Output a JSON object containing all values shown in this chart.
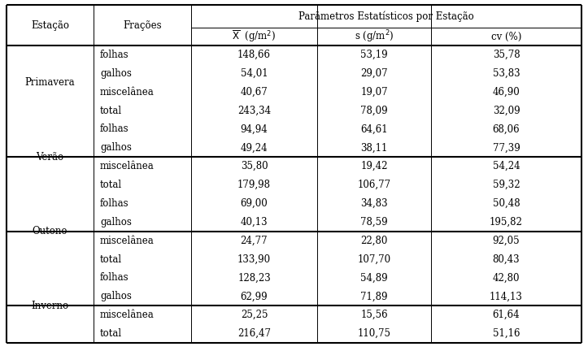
{
  "title": "Parâmetros Estatísticos por Estação",
  "seasons": [
    "Primavera",
    "Verão",
    "Outono",
    "Inverno"
  ],
  "fractions": [
    "folhas",
    "galhos",
    "miscelânea",
    "total"
  ],
  "data": {
    "Primavera": {
      "folhas": [
        "148,66",
        "53,19",
        "35,78"
      ],
      "galhos": [
        "54,01",
        "29,07",
        "53,83"
      ],
      "miscelânea": [
        "40,67",
        "19,07",
        "46,90"
      ],
      "total": [
        "243,34",
        "78,09",
        "32,09"
      ]
    },
    "Verão": {
      "folhas": [
        "94,94",
        "64,61",
        "68,06"
      ],
      "galhos": [
        "49,24",
        "38,11",
        "77,39"
      ],
      "miscelânea": [
        "35,80",
        "19,42",
        "54,24"
      ],
      "total": [
        "179,98",
        "106,77",
        "59,32"
      ]
    },
    "Outono": {
      "folhas": [
        "69,00",
        "34,83",
        "50,48"
      ],
      "galhos": [
        "40,13",
        "78,59",
        "195,82"
      ],
      "miscelânea": [
        "24,77",
        "22,80",
        "92,05"
      ],
      "total": [
        "133,90",
        "107,70",
        "80,43"
      ]
    },
    "Inverno": {
      "folhas": [
        "128,23",
        "54,89",
        "42,80"
      ],
      "galhos": [
        "62,99",
        "71,89",
        "114,13"
      ],
      "miscelânea": [
        "25,25",
        "15,56",
        "61,64"
      ],
      "total": [
        "216,47",
        "110,75",
        "51,16"
      ]
    }
  },
  "col0_header": "Estação",
  "col1_header": "Frações",
  "col2_header": "X_bar (g/m²)",
  "col3_header": "s (g/m²)",
  "col4_header": "cv (%)",
  "bg_color": "#ffffff",
  "text_color": "#000000",
  "font_size": 8.5,
  "header_font_size": 8.5,
  "lw_thick": 1.5,
  "lw_thin": 0.7
}
